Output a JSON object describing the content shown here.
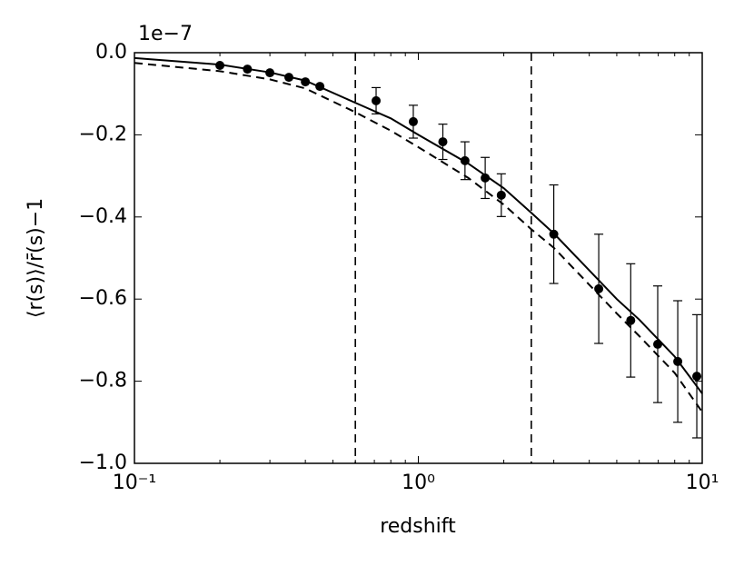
{
  "chart_data": {
    "type": "line",
    "xlabel": "redshift",
    "ylabel": "⟨r(s)⟩/r̄(s)−1",
    "y_offset_label": "1e−7",
    "xscale": "log",
    "xlim": [
      0.1,
      10
    ],
    "ylim": [
      -1.0,
      0.0
    ],
    "xticks": [
      {
        "value": 0.1,
        "label": "10⁻¹"
      },
      {
        "value": 1,
        "label": "10⁰"
      },
      {
        "value": 10,
        "label": "10¹"
      }
    ],
    "yticks": [
      {
        "value": -1.0,
        "label": "−1.0"
      },
      {
        "value": -0.8,
        "label": "−0.8"
      },
      {
        "value": -0.6,
        "label": "−0.6"
      },
      {
        "value": -0.4,
        "label": "−0.4"
      },
      {
        "value": -0.2,
        "label": "−0.2"
      },
      {
        "value": 0.0,
        "label": "0.0"
      }
    ],
    "minor_ticks": true,
    "series": [
      {
        "color": "#000000",
        "linestyle": "solid",
        "x": [
          0.1,
          0.2,
          0.3,
          0.4,
          0.6,
          0.8,
          1.0,
          1.5,
          2.0,
          2.5,
          3,
          4,
          5,
          6,
          8,
          10
        ],
        "values": [
          -0.013,
          -0.029,
          -0.048,
          -0.068,
          -0.122,
          -0.16,
          -0.2,
          -0.27,
          -0.33,
          -0.39,
          -0.44,
          -0.53,
          -0.6,
          -0.65,
          -0.74,
          -0.83
        ]
      },
      {
        "color": "#000000",
        "linestyle": "dashed",
        "x": [
          0.1,
          0.2,
          0.3,
          0.4,
          0.6,
          0.8,
          1.0,
          1.5,
          2.0,
          2.5,
          3,
          4,
          5,
          6,
          8,
          10
        ],
        "values": [
          -0.025,
          -0.045,
          -0.065,
          -0.087,
          -0.145,
          -0.19,
          -0.23,
          -0.305,
          -0.37,
          -0.43,
          -0.475,
          -0.565,
          -0.635,
          -0.69,
          -0.78,
          -0.875
        ]
      },
      {
        "color": "#000000",
        "linestyle": "none",
        "marker": "o",
        "x": [
          0.2,
          0.25,
          0.3,
          0.35,
          0.4,
          0.45,
          0.71,
          0.96,
          1.22,
          1.46,
          1.72,
          1.96,
          3.0,
          4.32,
          5.6,
          6.97,
          8.2,
          9.57
        ],
        "values": [
          -0.031,
          -0.04,
          -0.049,
          -0.06,
          -0.071,
          -0.082,
          -0.117,
          -0.168,
          -0.217,
          -0.263,
          -0.305,
          -0.347,
          -0.442,
          -0.575,
          -0.652,
          -0.71,
          -0.752,
          -0.788
        ],
        "errors": [
          null,
          null,
          null,
          null,
          null,
          null,
          0.032,
          0.04,
          0.043,
          0.046,
          0.05,
          0.052,
          0.12,
          0.133,
          0.138,
          0.142,
          0.148,
          0.15
        ]
      }
    ],
    "vlines": {
      "values": [
        0.6,
        2.5
      ],
      "color": "#000000",
      "linestyle": "dashed"
    }
  }
}
